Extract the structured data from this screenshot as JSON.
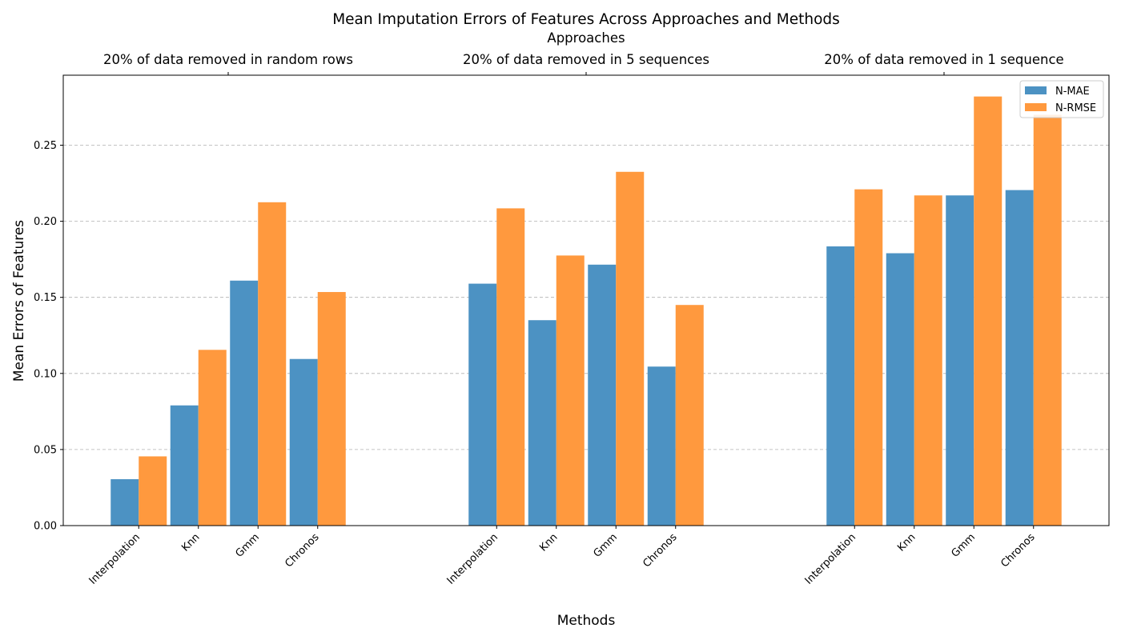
{
  "chart_data": {
    "type": "bar",
    "title": "Mean Imputation Errors of Features Across Approaches and Methods",
    "top_axis_label": "Approaches",
    "xlabel": "Methods",
    "ylabel": "Mean Errors of Features",
    "ylim": [
      0,
      0.296
    ],
    "yticks": [
      "0.00",
      "0.05",
      "0.10",
      "0.15",
      "0.20",
      "0.25"
    ],
    "grid": "y-dashed",
    "legend_position": "top-right",
    "colors": {
      "N-MAE": "#4c92c3",
      "N-RMSE": "#ff993e"
    },
    "groups": [
      {
        "approach": "20% of data removed in random rows",
        "categories": [
          "Interpolation",
          "Knn",
          "Gmm",
          "Chronos"
        ],
        "series": [
          {
            "name": "N-MAE",
            "values": [
              0.0305,
              0.079,
              0.161,
              0.1095
            ]
          },
          {
            "name": "N-RMSE",
            "values": [
              0.0455,
              0.1155,
              0.2125,
              0.1535
            ]
          }
        ]
      },
      {
        "approach": "20% of data removed in 5 sequences",
        "categories": [
          "Interpolation",
          "Knn",
          "Gmm",
          "Chronos"
        ],
        "series": [
          {
            "name": "N-MAE",
            "values": [
              0.159,
              0.135,
              0.1715,
              0.1045
            ]
          },
          {
            "name": "N-RMSE",
            "values": [
              0.2085,
              0.1775,
              0.2325,
              0.145
            ]
          }
        ]
      },
      {
        "approach": "20% of data removed in 1 sequence",
        "categories": [
          "Interpolation",
          "Knn",
          "Gmm",
          "Chronos"
        ],
        "series": [
          {
            "name": "N-MAE",
            "values": [
              0.1835,
              0.179,
              0.217,
              0.2205
            ]
          },
          {
            "name": "N-RMSE",
            "values": [
              0.221,
              0.217,
              0.282,
              0.27
            ]
          }
        ]
      }
    ]
  }
}
